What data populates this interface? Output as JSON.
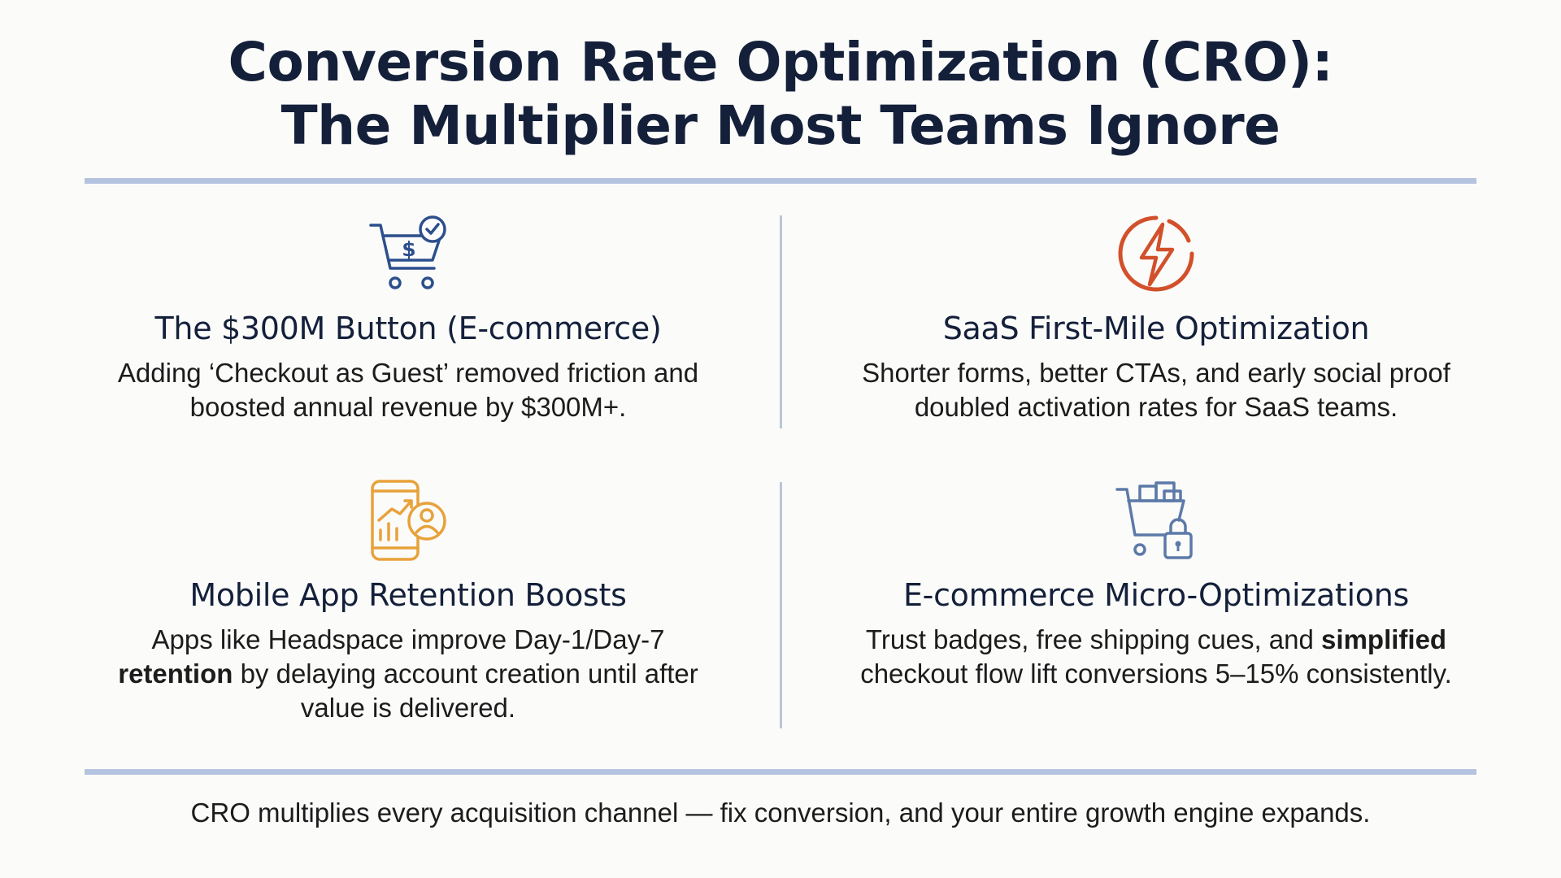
{
  "header": {
    "title_line1": "Conversion Rate Optimization (CRO):",
    "title_line2": "The Multiplier Most Teams Ignore"
  },
  "cards": [
    {
      "icon": "shopping-cart-dollar-check-icon",
      "accent": "#2c4f8c",
      "title": "The $300M Button (E-commerce)",
      "body_line1": "Adding ‘Checkout as Guest’ removed friction and",
      "body_line2": "boosted annual revenue by $300M+."
    },
    {
      "icon": "lightning-bolt-circle-icon",
      "accent": "#d2502a",
      "title": "SaaS First-Mile Optimization",
      "body_line1": "Shorter forms, better CTAs, and early social proof",
      "body_line2": "doubled activation rates for SaaS teams."
    },
    {
      "icon": "mobile-chart-user-icon",
      "accent": "#e8a23a",
      "title": "Mobile App Retention Boosts",
      "body_line1": "Apps like Headspace improve Day-1/Day-7",
      "body_line2_bold": "retention",
      "body_line2_rest": " by delaying account creation until after",
      "body_line3": "value is delivered."
    },
    {
      "icon": "cart-lock-icon",
      "accent": "#5c7aa8",
      "title": "E-commerce Micro-Optimizations",
      "body_line1_pre": "Trust badges, free shipping cues, and ",
      "body_line1_bold": "simplified",
      "body_line2": "checkout flow lift conversions 5–15% consistently."
    }
  ],
  "footer": {
    "text": "CRO multiplies every acquisition channel — fix conversion, and your entire growth engine expands."
  },
  "colors": {
    "title": "#14203a",
    "rule": "#b4c4e0",
    "background": "#fbfbfa"
  }
}
